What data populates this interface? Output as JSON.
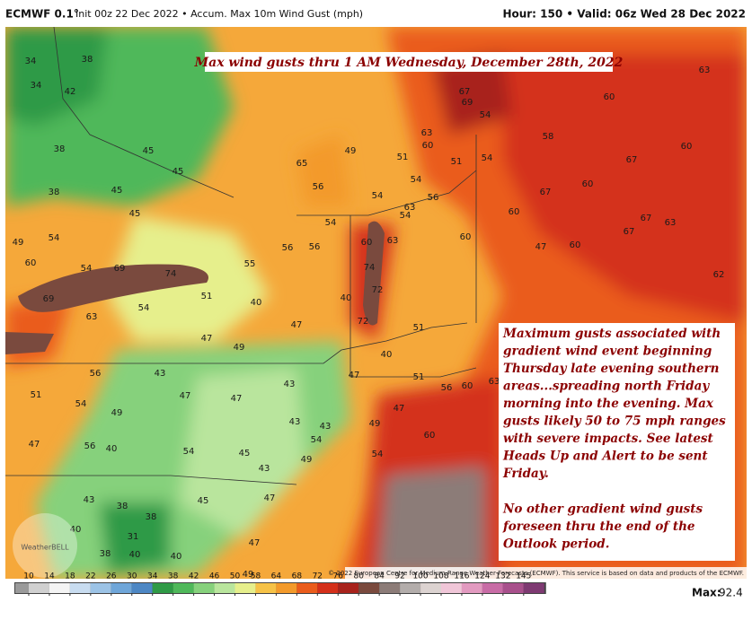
{
  "header": {
    "model": "ECMWF 0.1°",
    "title": "Init 00z 22 Dec 2022 • Accum. Max 10m Wind Gust (mph)",
    "valid": "Hour: 150 • Valid: 06z Wed 28 Dec 2022"
  },
  "map": {
    "title": "Max wind gusts thru 1 AM Wednesday, December 28th, 2022",
    "note_lines": [
      "Maximum gusts associated with",
      "gradient wind event beginning",
      "Thursday late evening southern",
      "areas...spreading north Friday",
      "morning into the evening. Max",
      "gusts likely 50 to 75 mph ranges",
      "with severe impacts. See latest",
      "Heads Up and Alert to be sent",
      "Friday.",
      "No other gradient wind gusts",
      "foreseen thru the end of the",
      "Outlook period."
    ],
    "copyright": "© 2022 European Centre for Medium-Range Weather Forecasts (ECMWF). This service is based on data and products of the ECMWF.",
    "logo": "WeatherBELL",
    "labels": [
      34,
      38,
      34,
      42,
      45,
      45,
      38,
      38,
      45,
      45,
      49,
      54,
      60,
      54,
      69,
      74,
      69,
      63,
      54,
      51,
      40,
      49,
      47,
      47,
      40,
      72,
      72,
      74,
      60,
      63,
      54,
      63,
      56,
      54,
      54,
      51,
      60,
      63,
      67,
      69,
      54,
      54,
      51,
      58,
      67,
      60,
      60,
      60,
      47,
      60,
      67,
      63,
      62,
      63,
      60,
      67,
      67,
      60,
      65,
      56,
      49,
      55,
      56,
      54,
      56,
      40,
      51,
      47,
      49,
      47,
      43,
      43,
      47,
      47,
      43,
      56,
      51,
      54,
      49,
      47,
      56,
      40,
      54,
      45,
      43,
      49,
      54,
      54,
      60,
      56,
      60,
      63,
      51,
      43,
      38,
      38,
      31,
      40,
      45,
      47,
      47,
      38,
      40,
      43,
      49,
      40
    ]
  },
  "colorbar": {
    "ticks": [
      10,
      14,
      18,
      22,
      26,
      30,
      34,
      38,
      42,
      46,
      50,
      58,
      64,
      68,
      72,
      76,
      80,
      84,
      92,
      100,
      108,
      116,
      124,
      132,
      145
    ],
    "colors": [
      "#9a9a9a",
      "#d0d0d0",
      "#f4f4f4",
      "#c8dcf0",
      "#9cc3e6",
      "#6fa6d9",
      "#4d87c4",
      "#2f9a46",
      "#4fb85a",
      "#86d17c",
      "#b9e59d",
      "#e6ef8c",
      "#f6c247",
      "#f39a2b",
      "#ea5c1c",
      "#d4301a",
      "#a8231c",
      "#7a4a3e",
      "#8c7c78",
      "#b3adab",
      "#dcd3d1",
      "#f0c6d8",
      "#e29ac0",
      "#c86ca6",
      "#a8508c",
      "#7e3a72"
    ],
    "max_label": "Max:",
    "max_value": 92.4
  }
}
